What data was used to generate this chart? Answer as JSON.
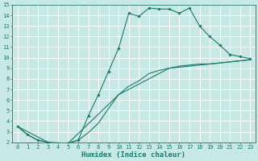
{
  "xlabel": "Humidex (Indice chaleur)",
  "ylabel": "",
  "xlim": [
    -0.5,
    23.5
  ],
  "ylim": [
    2,
    15
  ],
  "xticks": [
    0,
    1,
    2,
    3,
    4,
    5,
    6,
    7,
    8,
    9,
    10,
    11,
    12,
    13,
    14,
    15,
    16,
    17,
    18,
    19,
    20,
    21,
    22,
    23
  ],
  "yticks": [
    2,
    3,
    4,
    5,
    6,
    7,
    8,
    9,
    10,
    11,
    12,
    13,
    14,
    15
  ],
  "bg_color": "#c8e8e4",
  "line_color": "#1a7a6e",
  "grid_color": "#ffffff",
  "line1_x": [
    0,
    1,
    2,
    3,
    4,
    5,
    6,
    7,
    8,
    9,
    10,
    11,
    12,
    13,
    14,
    15,
    16,
    17,
    18,
    19,
    20,
    21,
    22,
    23
  ],
  "line1_y": [
    3.5,
    2.7,
    2.2,
    2.0,
    1.8,
    1.9,
    2.2,
    4.5,
    6.5,
    8.7,
    10.9,
    14.2,
    13.9,
    14.7,
    14.6,
    14.6,
    14.2,
    14.7,
    13.0,
    12.0,
    11.2,
    10.3,
    10.1,
    9.9
  ],
  "line2_x": [
    0,
    1,
    2,
    3,
    4,
    5,
    6,
    7,
    8,
    9,
    10,
    11,
    12,
    13,
    14,
    15,
    16,
    17,
    18,
    19,
    20,
    21,
    22,
    23
  ],
  "line2_y": [
    3.5,
    2.7,
    2.2,
    2.0,
    1.8,
    1.9,
    2.2,
    2.9,
    3.8,
    5.2,
    6.5,
    7.3,
    7.8,
    8.5,
    8.8,
    9.0,
    9.2,
    9.3,
    9.4,
    9.4,
    9.5,
    9.6,
    9.7,
    9.8
  ],
  "line3_x": [
    0,
    3,
    5,
    10,
    15,
    20,
    23
  ],
  "line3_y": [
    3.5,
    2.0,
    1.9,
    6.5,
    9.0,
    9.5,
    9.8
  ],
  "font_family": "monospace",
  "xlabel_fontsize": 6.5,
  "tick_fontsize": 5.0
}
